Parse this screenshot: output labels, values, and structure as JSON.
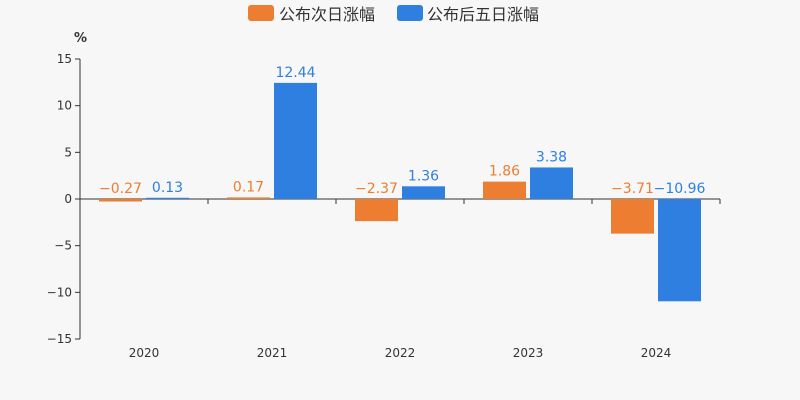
{
  "chart_data": {
    "type": "bar",
    "categories": [
      "2020",
      "2021",
      "2022",
      "2023",
      "2024"
    ],
    "series": [
      {
        "name": "公布次日涨幅",
        "values": [
          -0.27,
          0.17,
          -2.37,
          1.86,
          -3.71
        ],
        "labels": [
          "−0.27",
          "0.17",
          "−2.37",
          "1.86",
          "−3.71"
        ],
        "color": "#ed7d31"
      },
      {
        "name": "公布后五日涨幅",
        "values": [
          0.13,
          12.44,
          1.36,
          3.38,
          -10.96
        ],
        "labels": [
          "0.13",
          "12.44",
          "1.36",
          "3.38",
          "−10.96"
        ],
        "color": "#2f7fe0"
      }
    ],
    "ylabel": "%",
    "ylim": [
      -15,
      15
    ],
    "yticks": [
      15,
      10,
      5,
      0,
      -5,
      -10,
      -15
    ],
    "ytick_labels": [
      "15",
      "10",
      "5",
      "0",
      "−5",
      "−10",
      "−15"
    ],
    "legend": "top-center",
    "grid": false
  }
}
